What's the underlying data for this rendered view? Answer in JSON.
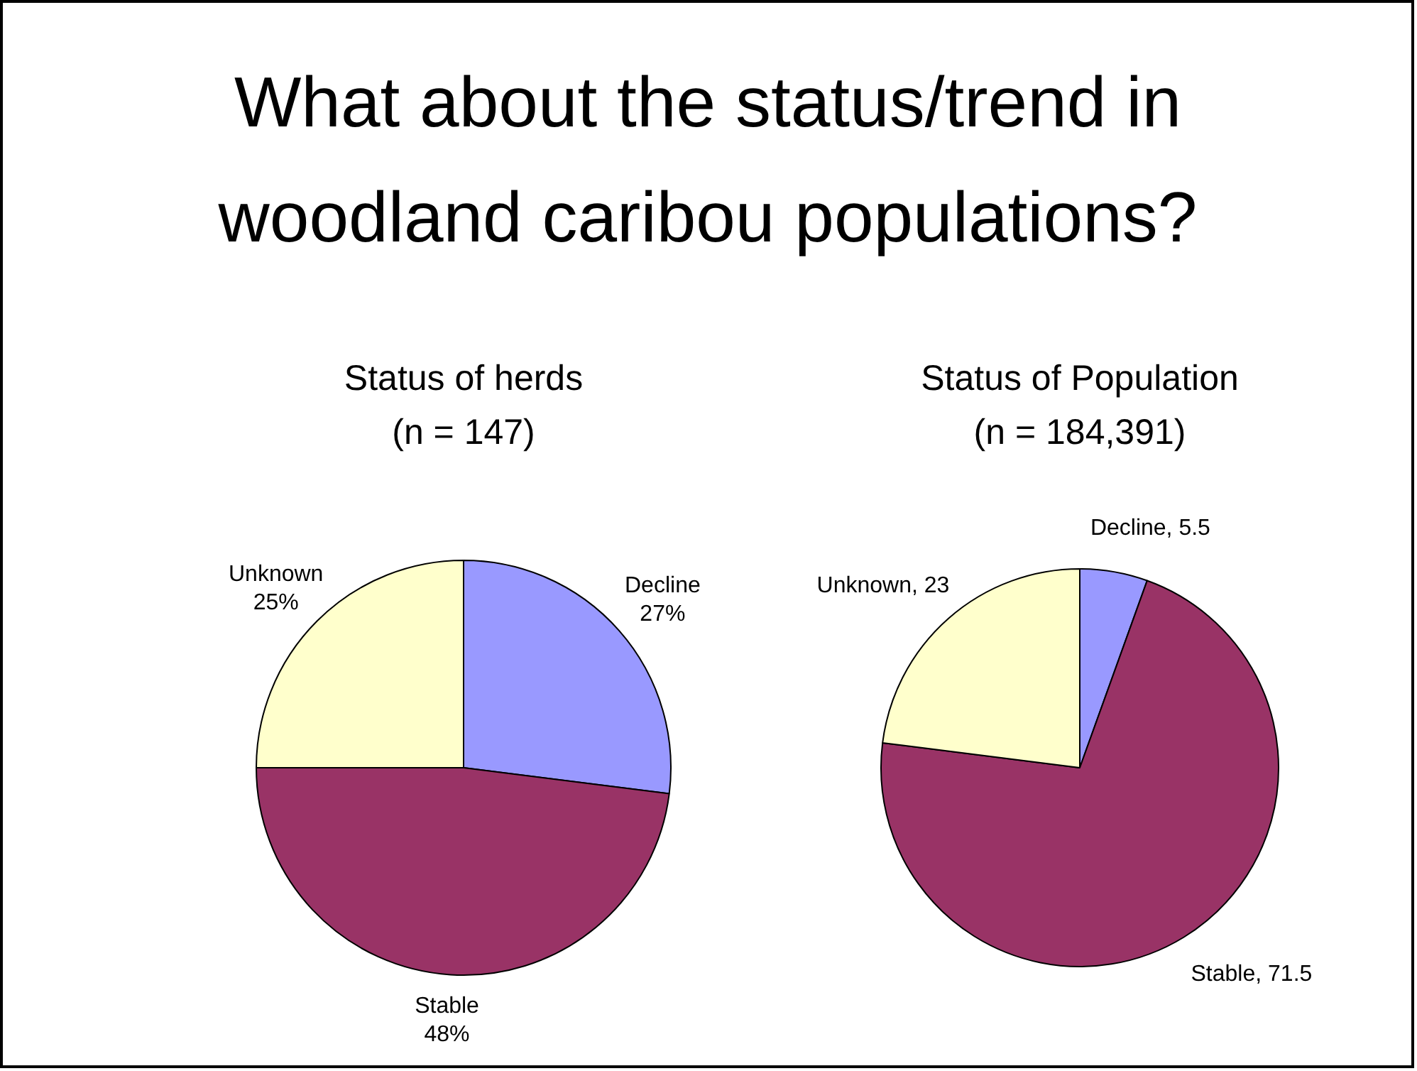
{
  "chart_data": [
    {
      "type": "pie",
      "title": "Status of herds",
      "subtitle": "(n = 147)",
      "annotations": [
        "What about the status/trend in woodland caribou populations?"
      ],
      "categories": [
        "Decline",
        "Stable",
        "Unknown"
      ],
      "values": [
        27,
        48,
        25
      ],
      "colors": [
        "#9999ff",
        "#993366",
        "#ffffcc"
      ],
      "value_labels": [
        "27%",
        "48%",
        "25%"
      ]
    },
    {
      "type": "pie",
      "title": "Status of Population",
      "subtitle": "(n = 184,391)",
      "categories": [
        "Decline",
        "Stable",
        "Unknown"
      ],
      "values": [
        5.5,
        71.5,
        23
      ],
      "colors": [
        "#9999ff",
        "#993366",
        "#ffffcc"
      ],
      "value_labels": [
        ", 5.5",
        ", 71.5",
        ", 23"
      ]
    }
  ]
}
